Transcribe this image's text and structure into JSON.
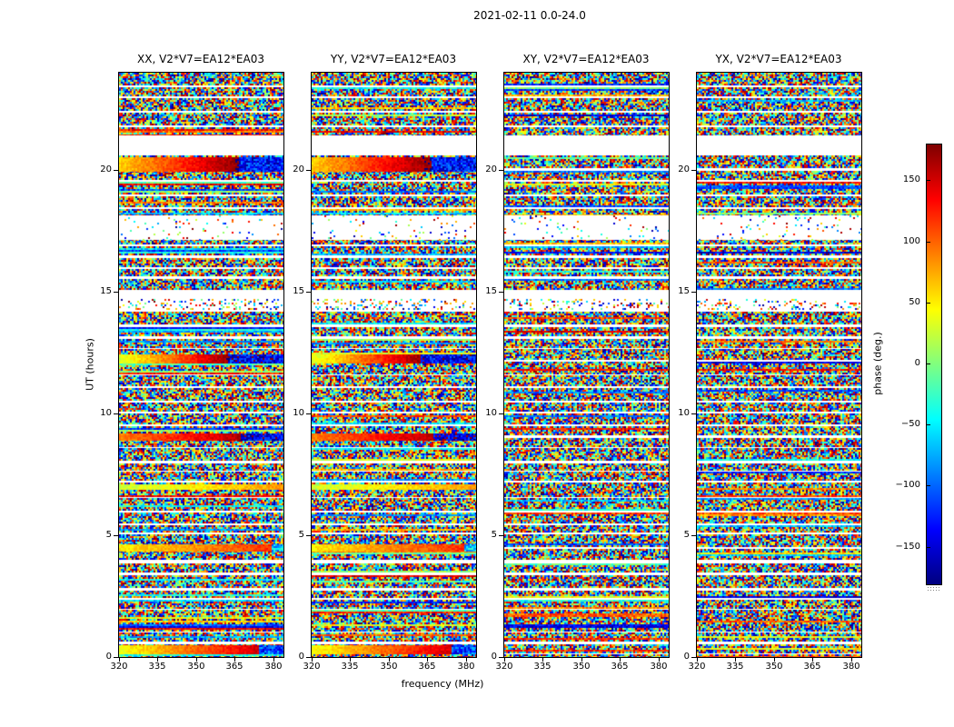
{
  "figure": {
    "suptitle": "2021-02-11 0.0-24.0",
    "xlabel": "frequency (MHz)",
    "ylabel": "UT (hours)",
    "colorbar_label": "phase (deg.)"
  },
  "axes": {
    "x_ticks": [
      320,
      335,
      350,
      365,
      380
    ],
    "x_lim": [
      320,
      384
    ],
    "y_ticks": [
      0,
      5,
      10,
      15,
      20
    ],
    "y_lim": [
      0,
      24
    ]
  },
  "colorbar": {
    "ticks": [
      150,
      100,
      50,
      0,
      -50,
      -100,
      -150
    ],
    "lim": [
      -180,
      180
    ],
    "colormap": "jet"
  },
  "chart_data": {
    "type": "heatmap",
    "title": "2021-02-11 0.0-24.0",
    "xlabel": "frequency (MHz)",
    "ylabel": "UT (hours)",
    "zlabel": "phase (deg.)",
    "xlim": [
      320,
      384
    ],
    "ylim": [
      0,
      24
    ],
    "zlim": [
      -180,
      180
    ],
    "x_ticks": [
      320,
      335,
      350,
      365,
      380
    ],
    "y_ticks": [
      0,
      5,
      10,
      15,
      20
    ],
    "colorbar_ticks": [
      150,
      100,
      50,
      0,
      -50,
      -100,
      -150
    ],
    "colormap": "jet",
    "panels": [
      {
        "label": "XX, V2*V7=EA12*EA03",
        "coherent_phase_bands": true
      },
      {
        "label": "YY, V2*V7=EA12*EA03",
        "coherent_phase_bands": true
      },
      {
        "label": "XY, V2*V7=EA12*EA03",
        "coherent_phase_bands": false
      },
      {
        "label": "YX, V2*V7=EA12*EA03",
        "coherent_phase_bands": false
      }
    ],
    "description": "Interferometric baseline phase versus frequency (320-384 MHz) and time (0-24 h UT) for four polarization products of baseline V2*V7=EA12*EA03. Content is mostly random phase noise in short time blocks separated by thin blank gaps; XX and YY show a few frequency-coherent phase bands (smooth red/orange ramps wrapping to blue).",
    "blank_gaps_ut": [
      [
        20.62,
        21.42
      ]
    ],
    "sparse_regions_ut": [
      [
        17.15,
        18.15
      ]
    ],
    "coherent_bands_ut": [
      {
        "ut": [
          19.98,
          20.52
        ],
        "phase_left_deg": 60,
        "phase_right_deg": 175,
        "break_mhz": 366,
        "phase_after_deg": -130
      },
      {
        "ut": [
          12.05,
          12.42
        ],
        "phase_left_deg": 30,
        "phase_right_deg": 170,
        "break_mhz": 362,
        "phase_after_deg": -140
      },
      {
        "ut": [
          8.92,
          9.2
        ],
        "phase_left_deg": 90,
        "phase_right_deg": 160,
        "break_mhz": 367,
        "phase_after_deg": -150
      },
      {
        "ut": [
          6.88,
          7.1
        ],
        "phase_left_deg": 25,
        "phase_right_deg": 80,
        "break_mhz": 384,
        "phase_after_deg": 0
      },
      {
        "ut": [
          4.38,
          4.62
        ],
        "phase_left_deg": 50,
        "phase_right_deg": 120,
        "break_mhz": 379,
        "phase_after_deg": -60
      },
      {
        "ut": [
          0.15,
          0.5
        ],
        "phase_left_deg": 40,
        "phase_right_deg": 150,
        "break_mhz": 374,
        "phase_after_deg": -110
      }
    ],
    "scan_block_mean_ut": 0.38,
    "scan_gap_mean_ut": 0.1,
    "noise_seed": 20210211
  }
}
